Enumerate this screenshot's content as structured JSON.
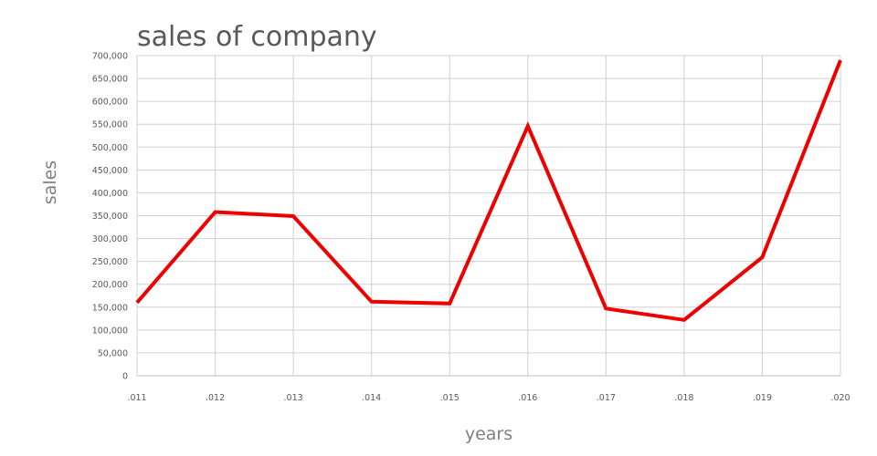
{
  "chart_data": {
    "type": "line",
    "title": "sales of company",
    "xlabel": "years",
    "ylabel": "sales",
    "categories": [
      ".011",
      ".012",
      ".013",
      ".014",
      ".015",
      ".016",
      ".017",
      ".018",
      ".019",
      ".020"
    ],
    "series": [
      {
        "values": [
          160000,
          358000,
          349000,
          162000,
          158000,
          546000,
          147000,
          122000,
          259000,
          690000
        ],
        "color": "#ee0000"
      }
    ],
    "ylim": [
      0,
      700000
    ],
    "yticks": [
      0,
      50000,
      100000,
      150000,
      200000,
      250000,
      300000,
      350000,
      400000,
      450000,
      500000,
      550000,
      600000,
      650000,
      700000
    ],
    "ytick_labels": [
      "0",
      "50,000",
      "100,000",
      "150,000",
      "200,000",
      "250,000",
      "300,000",
      "350,000",
      "400,000",
      "450,000",
      "500,000",
      "550,000",
      "600,000",
      "650,000",
      "700,000"
    ],
    "grid": true,
    "legend": "none"
  }
}
